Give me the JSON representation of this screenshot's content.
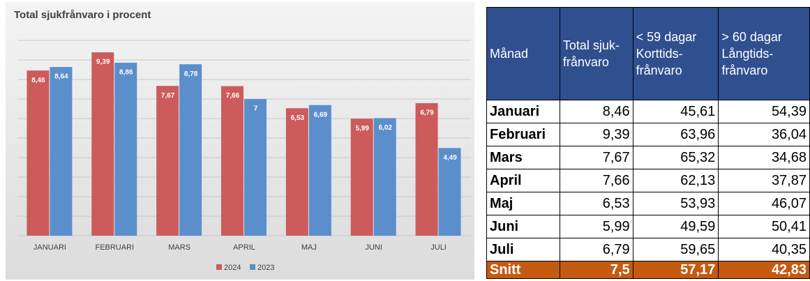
{
  "chart_data": {
    "type": "bar",
    "title": "Total sjukfrånvaro i procent",
    "categories": [
      "JANUARI",
      "FEBRUARI",
      "MARS",
      "APRIL",
      "MAJ",
      "JUNI",
      "JULI"
    ],
    "series": [
      {
        "name": "2024",
        "color": "#cd5b5b",
        "values": [
          8.46,
          9.39,
          7.67,
          7.66,
          6.53,
          5.99,
          6.79
        ],
        "value_labels": [
          "8,46",
          "9,39",
          "7,67",
          "7,66",
          "6,53",
          "5,99",
          "6,79"
        ]
      },
      {
        "name": "2023",
        "color": "#5b8fcb",
        "values": [
          8.64,
          8.86,
          8.78,
          7,
          6.69,
          6.02,
          4.49
        ],
        "value_labels": [
          "8,64",
          "8,86",
          "8,78",
          "7",
          "6,69",
          "6,02",
          "4,49"
        ]
      }
    ],
    "ylim": [
      0,
      10
    ],
    "yticks": [
      0,
      1,
      2,
      3,
      4,
      5,
      6,
      7,
      8,
      9,
      10
    ],
    "grid": true,
    "legend": "bottom"
  },
  "table": {
    "header": [
      [
        "Månad"
      ],
      [
        "Total sjuk-",
        "frånvaro"
      ],
      [
        "< 59 dagar",
        "Korttids-",
        "frånvaro"
      ],
      [
        "> 60 dagar",
        "Långtids-",
        "frånvaro"
      ]
    ],
    "rows": [
      [
        "Januari",
        "8,46",
        "45,61",
        "54,39"
      ],
      [
        "Februari",
        "9,39",
        "63,96",
        "36,04"
      ],
      [
        "Mars",
        "7,67",
        "65,32",
        "34,68"
      ],
      [
        "April",
        "7,66",
        "62,13",
        "37,87"
      ],
      [
        "Maj",
        "6,53",
        "53,93",
        "46,07"
      ],
      [
        "Juni",
        "5,99",
        "49,59",
        "50,41"
      ],
      [
        "Juli",
        "6,79",
        "59,65",
        "40,35"
      ]
    ],
    "footer": [
      "Snitt",
      "7,5",
      "57,17",
      "42,83"
    ]
  }
}
